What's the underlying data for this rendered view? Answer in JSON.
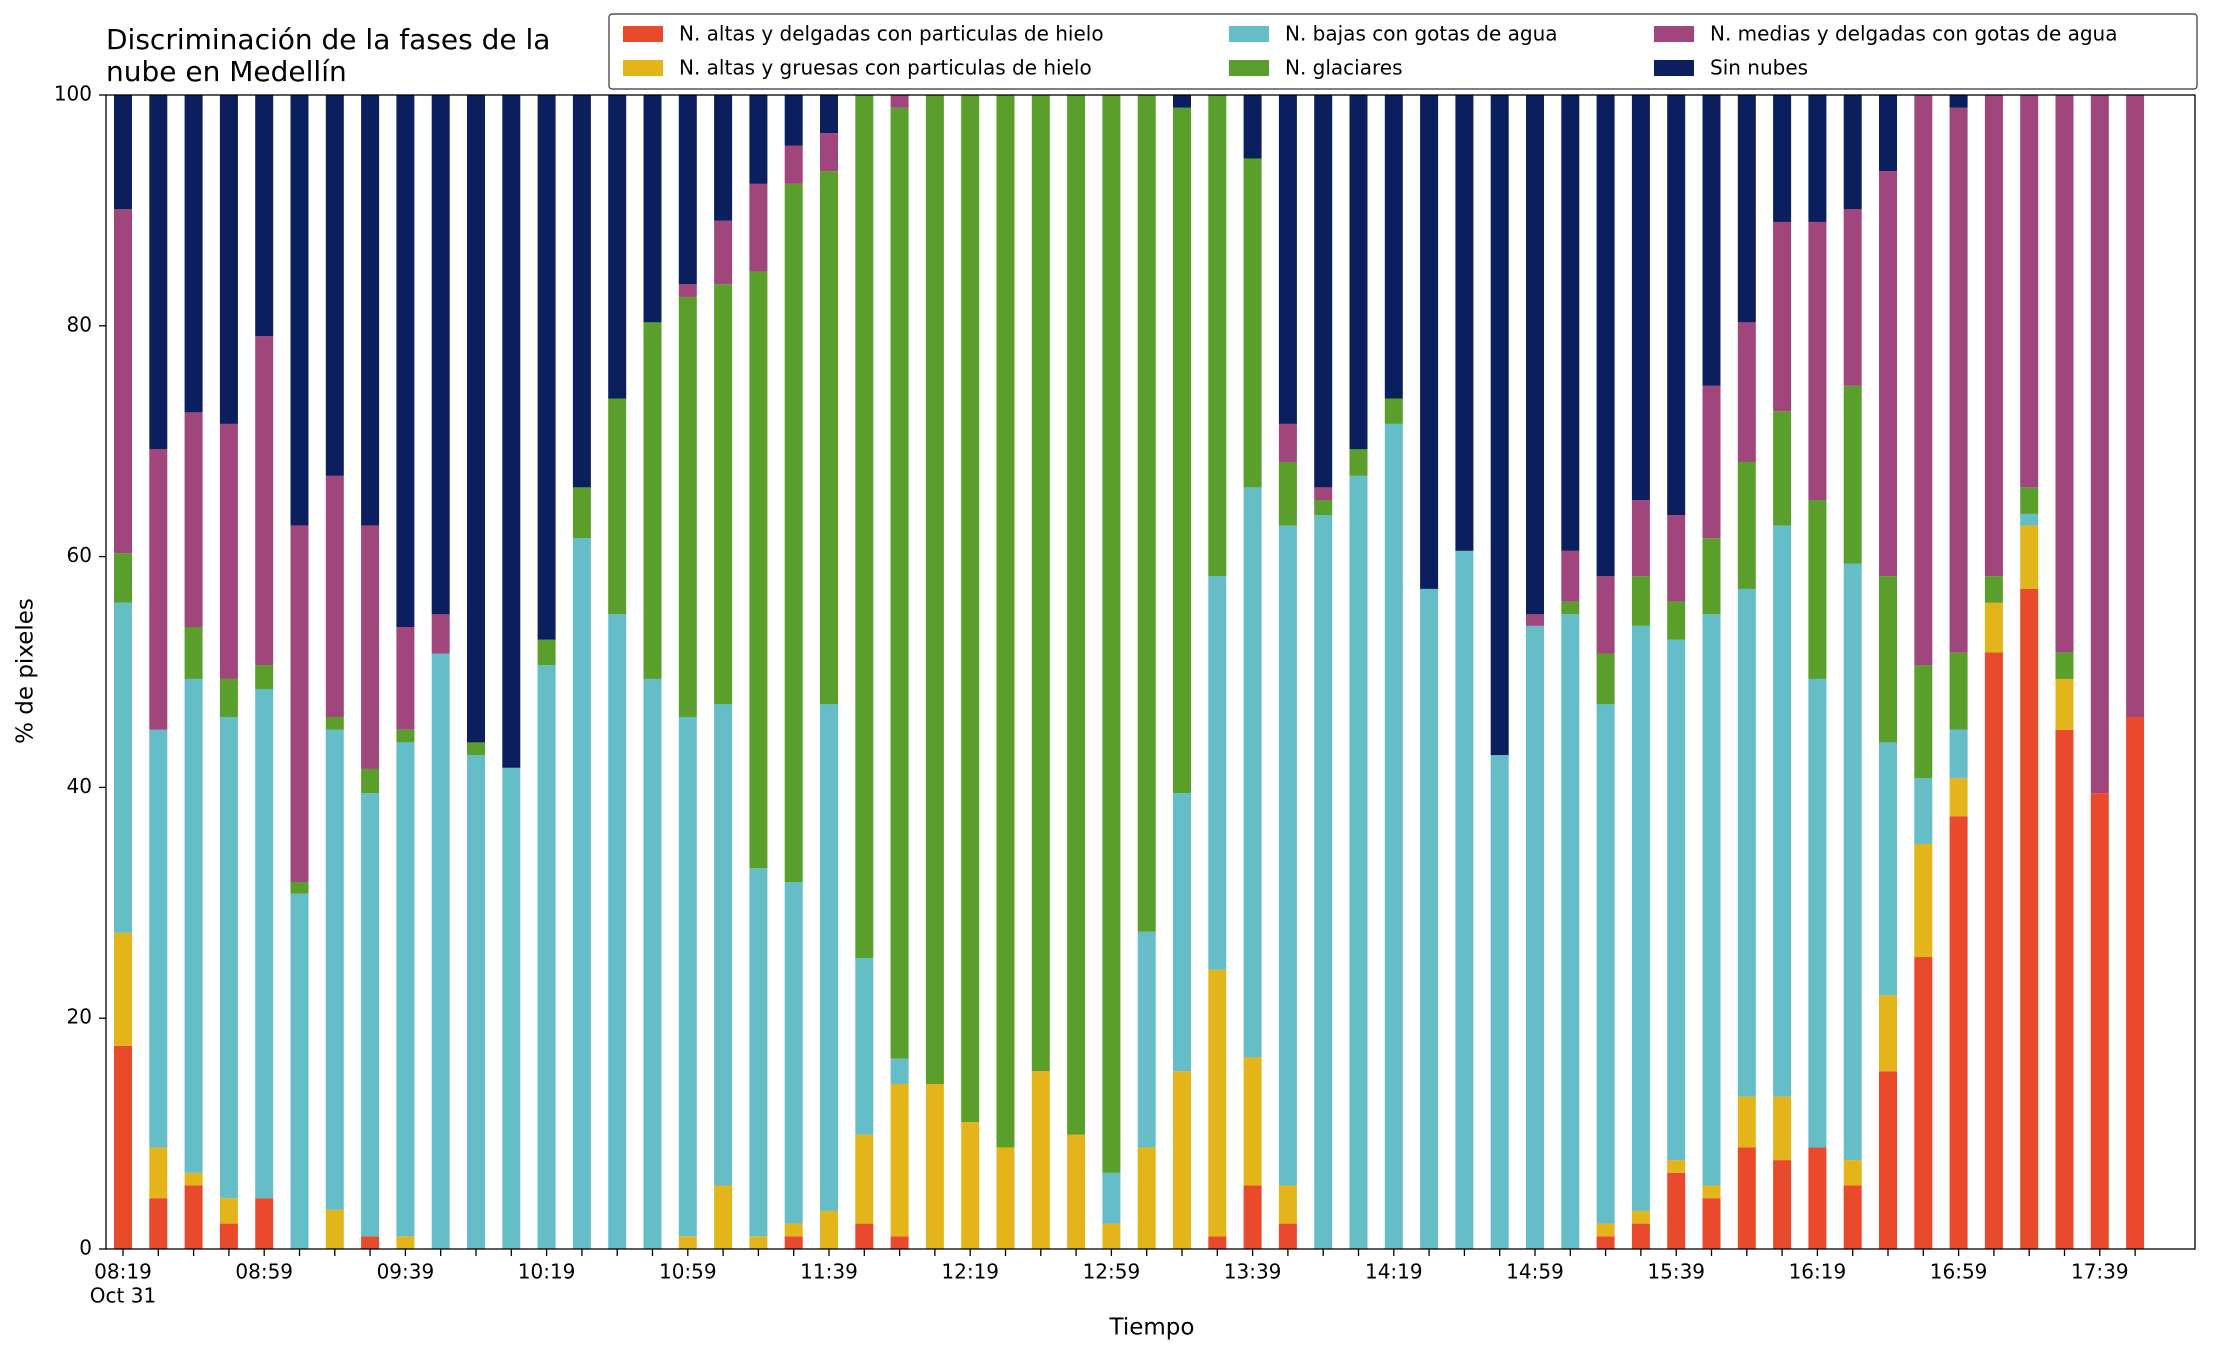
{
  "chart_data": {
    "type": "stacked_bar",
    "title": [
      "Discriminación de la fases de la",
      "nube en Medellín"
    ],
    "x_label": "Tiempo",
    "y_label": "% de pixeles",
    "date_label": "Oct 31",
    "categories": [
      "08:19",
      null,
      null,
      null,
      "08:59",
      null,
      null,
      null,
      "09:39",
      null,
      null,
      null,
      "10:19",
      null,
      null,
      null,
      "10:59",
      null,
      null,
      null,
      "11:39",
      null,
      null,
      null,
      "12:19",
      null,
      null,
      null,
      "12:59",
      null,
      null,
      null,
      "13:39",
      null,
      null,
      null,
      "14:19",
      null,
      null,
      null,
      "14:59",
      null,
      null,
      null,
      "15:39",
      null,
      null,
      null,
      "16:19",
      null,
      null,
      null,
      "16:59",
      null,
      null,
      null,
      "17:39",
      null
    ],
    "series": [
      {
        "name": "N. altas y delgadas con particulas de hielo",
        "color": "#e84a2b",
        "values": [
          17.6,
          4.4,
          5.5,
          2.2,
          4.4,
          0,
          0,
          1.1,
          0,
          0,
          0,
          0,
          0,
          0,
          0,
          0,
          0,
          0,
          0,
          1.1,
          0,
          2.2,
          1.1,
          0,
          0,
          0,
          0,
          0,
          0,
          0,
          0,
          1.1,
          5.5,
          2.2,
          0,
          0,
          0,
          0,
          0,
          0,
          0,
          0,
          1.1,
          2.2,
          6.6,
          4.4,
          8.8,
          7.7,
          8.8,
          5.5,
          15.4,
          25.3,
          37.5,
          51.7,
          57.2,
          45,
          39.5,
          46.1
        ]
      },
      {
        "name": "N. altas y gruesas con particulas de hielo",
        "color": "#e3b51b",
        "values": [
          9.8,
          4.4,
          1.1,
          2.2,
          0,
          0,
          3.4,
          0,
          1.1,
          0,
          0,
          0,
          0,
          0,
          0,
          0,
          1.1,
          5.5,
          1.1,
          1.1,
          3.3,
          7.7,
          13.2,
          14.3,
          11,
          8.8,
          15.4,
          9.9,
          2.2,
          8.8,
          15.4,
          23.1,
          11.1,
          3.3,
          0,
          0,
          0,
          0,
          0,
          0,
          0,
          0,
          1.1,
          1.1,
          1.1,
          1.1,
          4.4,
          5.5,
          0,
          2.2,
          6.6,
          9.8,
          3.3,
          4.3,
          5.5,
          4.4,
          0,
          0
        ]
      },
      {
        "name": "N. bajas con gotas de agua",
        "color": "#65bdc8",
        "values": [
          28.6,
          36.2,
          42.8,
          41.7,
          44.1,
          30.8,
          41.6,
          38.4,
          42.8,
          51.6,
          42.8,
          41.7,
          50.6,
          61.6,
          55,
          49.4,
          45,
          41.7,
          31.9,
          29.6,
          43.9,
          15.3,
          2.2,
          0,
          0,
          0,
          0,
          0,
          4.4,
          18.7,
          24.1,
          34.1,
          49.4,
          57.2,
          63.6,
          67,
          71.5,
          57.2,
          60.5,
          42.8,
          54,
          55,
          45,
          50.7,
          45.1,
          49.5,
          44,
          49.5,
          40.6,
          51.7,
          21.9,
          5.7,
          4.2,
          0,
          1,
          0,
          0,
          0
        ]
      },
      {
        "name": "N. glaciares",
        "color": "#5a9e2c",
        "values": [
          4.3,
          0,
          4.5,
          3.3,
          2.1,
          1,
          1.1,
          2.1,
          1.1,
          0,
          1.1,
          0,
          2.2,
          4.4,
          18.7,
          30.9,
          36.4,
          36.4,
          51.7,
          60.5,
          46.2,
          74.8,
          82.4,
          85.7,
          89,
          91.2,
          84.6,
          90.1,
          93.4,
          72.5,
          59.4,
          41.7,
          28.5,
          5.5,
          1.3,
          2.3,
          2.2,
          0,
          0,
          0,
          0,
          1.1,
          4.4,
          4.3,
          3.3,
          6.6,
          11,
          9.9,
          15.5,
          15.4,
          14.4,
          9.8,
          6.7,
          2.3,
          2.3,
          2.3,
          0,
          0
        ]
      },
      {
        "name": "N. medias y delgadas con gotas de agua",
        "color": "#a0467c",
        "values": [
          29.8,
          24.3,
          18.6,
          22.1,
          28.5,
          30.9,
          20.9,
          21.1,
          8.9,
          3.4,
          0,
          0,
          0,
          0,
          0,
          0,
          1.1,
          5.5,
          7.6,
          3.3,
          3.3,
          0,
          1.1,
          0,
          0,
          0,
          0,
          0,
          0,
          0,
          0,
          0,
          0,
          3.3,
          1.1,
          0,
          0,
          0,
          0,
          0,
          1,
          4.4,
          6.7,
          6.6,
          7.5,
          13.2,
          12.1,
          16.4,
          24.1,
          15.3,
          35.1,
          49.4,
          47.2,
          41.7,
          34,
          48.3,
          60.5,
          53.9
        ]
      },
      {
        "name": "Sin nubes",
        "color": "#0b1f5e",
        "values": [
          9.9,
          30.7,
          27.5,
          28.5,
          20.9,
          37.3,
          33,
          37.3,
          46.1,
          45,
          56.1,
          58.3,
          47.2,
          34,
          26.3,
          19.7,
          16.4,
          10.9,
          7.7,
          4.4,
          3.3,
          0,
          0,
          0,
          0,
          0,
          0,
          0,
          0,
          0,
          1.1,
          0,
          5.5,
          28.5,
          34,
          30.7,
          26.3,
          42.8,
          39.5,
          57.2,
          45,
          39.5,
          41.7,
          35.1,
          36.4,
          25.2,
          19.7,
          11,
          11,
          9.9,
          6.6,
          0,
          1.1,
          0,
          0,
          0,
          0,
          0
        ]
      }
    ],
    "ylim": [
      0,
      100
    ],
    "yticks": [
      0,
      20,
      40,
      60,
      80,
      100
    ],
    "grid": false,
    "legend": "upper right",
    "legend_columns": 3
  }
}
